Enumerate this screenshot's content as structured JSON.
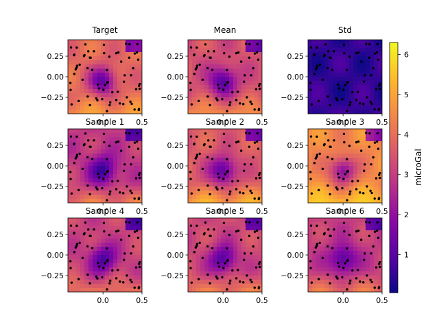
{
  "chart_data": {
    "type": "contour-grid",
    "colormap": "plasma",
    "colorbar": {
      "label": "microGal",
      "ticks": [
        1,
        2,
        3,
        4,
        5,
        6
      ],
      "range": [
        0.05,
        6.3
      ]
    },
    "x_ticks": [
      "0.0",
      "0.5"
    ],
    "y_ticks": [
      "0.25",
      "0.00",
      "−0.25"
    ],
    "xlim": [
      -0.45,
      0.5
    ],
    "ylim": [
      -0.45,
      0.45
    ],
    "panels": [
      {
        "title": "Target",
        "level": 3.9,
        "center_low": 1.2,
        "bright_bottom": 4.8
      },
      {
        "title": "Mean",
        "level": 3.4,
        "center_low": 0.9,
        "bright_bottom": 4.6
      },
      {
        "title": "Std",
        "level": 0.5,
        "center_low": 0.4,
        "bright_bottom": 0.6
      },
      {
        "title": "Sample 1",
        "level": 2.9,
        "center_low": 0.6,
        "bright_bottom": 4.3
      },
      {
        "title": "Sample 2",
        "level": 3.6,
        "center_low": 1.0,
        "bright_bottom": 5.2
      },
      {
        "title": "Sample 3",
        "level": 4.5,
        "center_low": 1.8,
        "bright_bottom": 5.6
      },
      {
        "title": "Sample 4",
        "level": 3.1,
        "center_low": 0.8,
        "bright_bottom": 4.1
      },
      {
        "title": "Sample 5",
        "level": 3.2,
        "center_low": 0.9,
        "bright_bottom": 4.3
      },
      {
        "title": "Sample 6",
        "level": 3.0,
        "center_low": 0.8,
        "bright_bottom": 4.2
      }
    ]
  }
}
